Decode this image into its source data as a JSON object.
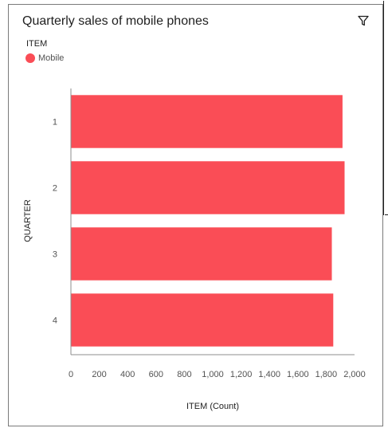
{
  "chart_data": {
    "type": "bar",
    "orientation": "horizontal",
    "title": "Quarterly sales of mobile phones",
    "legend_title": "ITEM",
    "legend_position": "top-left",
    "categories": [
      "1",
      "2",
      "3",
      "4"
    ],
    "series": [
      {
        "name": "Mobile",
        "color": "#fa4d56",
        "values": [
          1915,
          1930,
          1840,
          1850
        ]
      }
    ],
    "xlabel": "ITEM (Count)",
    "ylabel": "QUARTER",
    "xlim": [
      0,
      2000
    ],
    "xticks": [
      "0",
      "200",
      "400",
      "600",
      "800",
      "1,000",
      "1,200",
      "1,400",
      "1,600",
      "1,800",
      "2,000"
    ],
    "grid": false
  },
  "icons": {
    "filter": "filter-icon"
  }
}
